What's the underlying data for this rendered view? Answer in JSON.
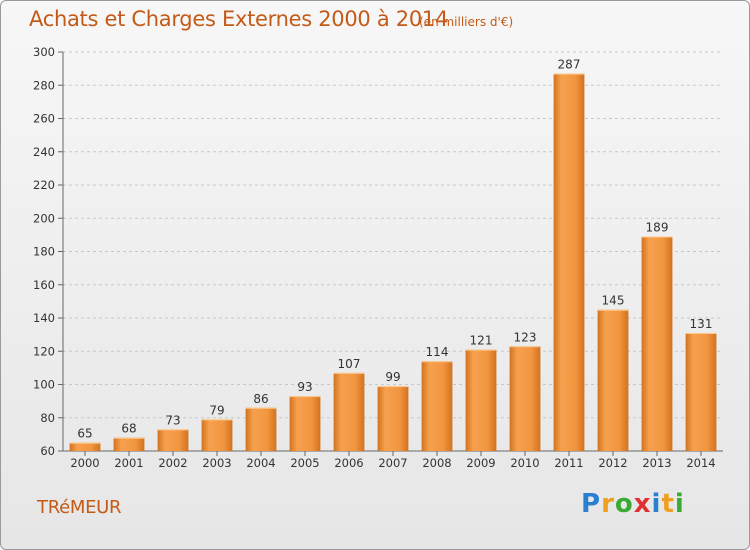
{
  "title": "Achats et Charges Externes 2000 à 2014",
  "subtitle": "(en milliers d'€)",
  "city": "TRéMEUR",
  "logo": {
    "letters": [
      {
        "ch": "P",
        "color": "#2a7fd0"
      },
      {
        "ch": "r",
        "color": "#f0a020"
      },
      {
        "ch": "o",
        "color": "#3aaa35"
      },
      {
        "ch": "x",
        "color": "#e03030"
      },
      {
        "ch": "i",
        "color": "#2a7fd0"
      },
      {
        "ch": "t",
        "color": "#f0a020"
      },
      {
        "ch": "i",
        "color": "#3aaa35"
      }
    ]
  },
  "colors": {
    "bar_light": "#f6a04e",
    "bar_dark": "#d2731f",
    "title": "#c45a17"
  },
  "chart_data": {
    "type": "bar",
    "categories": [
      "2000",
      "2001",
      "2002",
      "2003",
      "2004",
      "2005",
      "2006",
      "2007",
      "2008",
      "2009",
      "2010",
      "2011",
      "2012",
      "2013",
      "2014"
    ],
    "values": [
      65,
      68,
      73,
      79,
      86,
      93,
      107,
      99,
      114,
      121,
      123,
      287,
      145,
      189,
      131
    ],
    "ylim": [
      60,
      300
    ],
    "yticks": [
      60,
      80,
      100,
      120,
      140,
      160,
      180,
      200,
      220,
      240,
      260,
      280,
      300
    ],
    "grid": true,
    "legend": "none"
  }
}
